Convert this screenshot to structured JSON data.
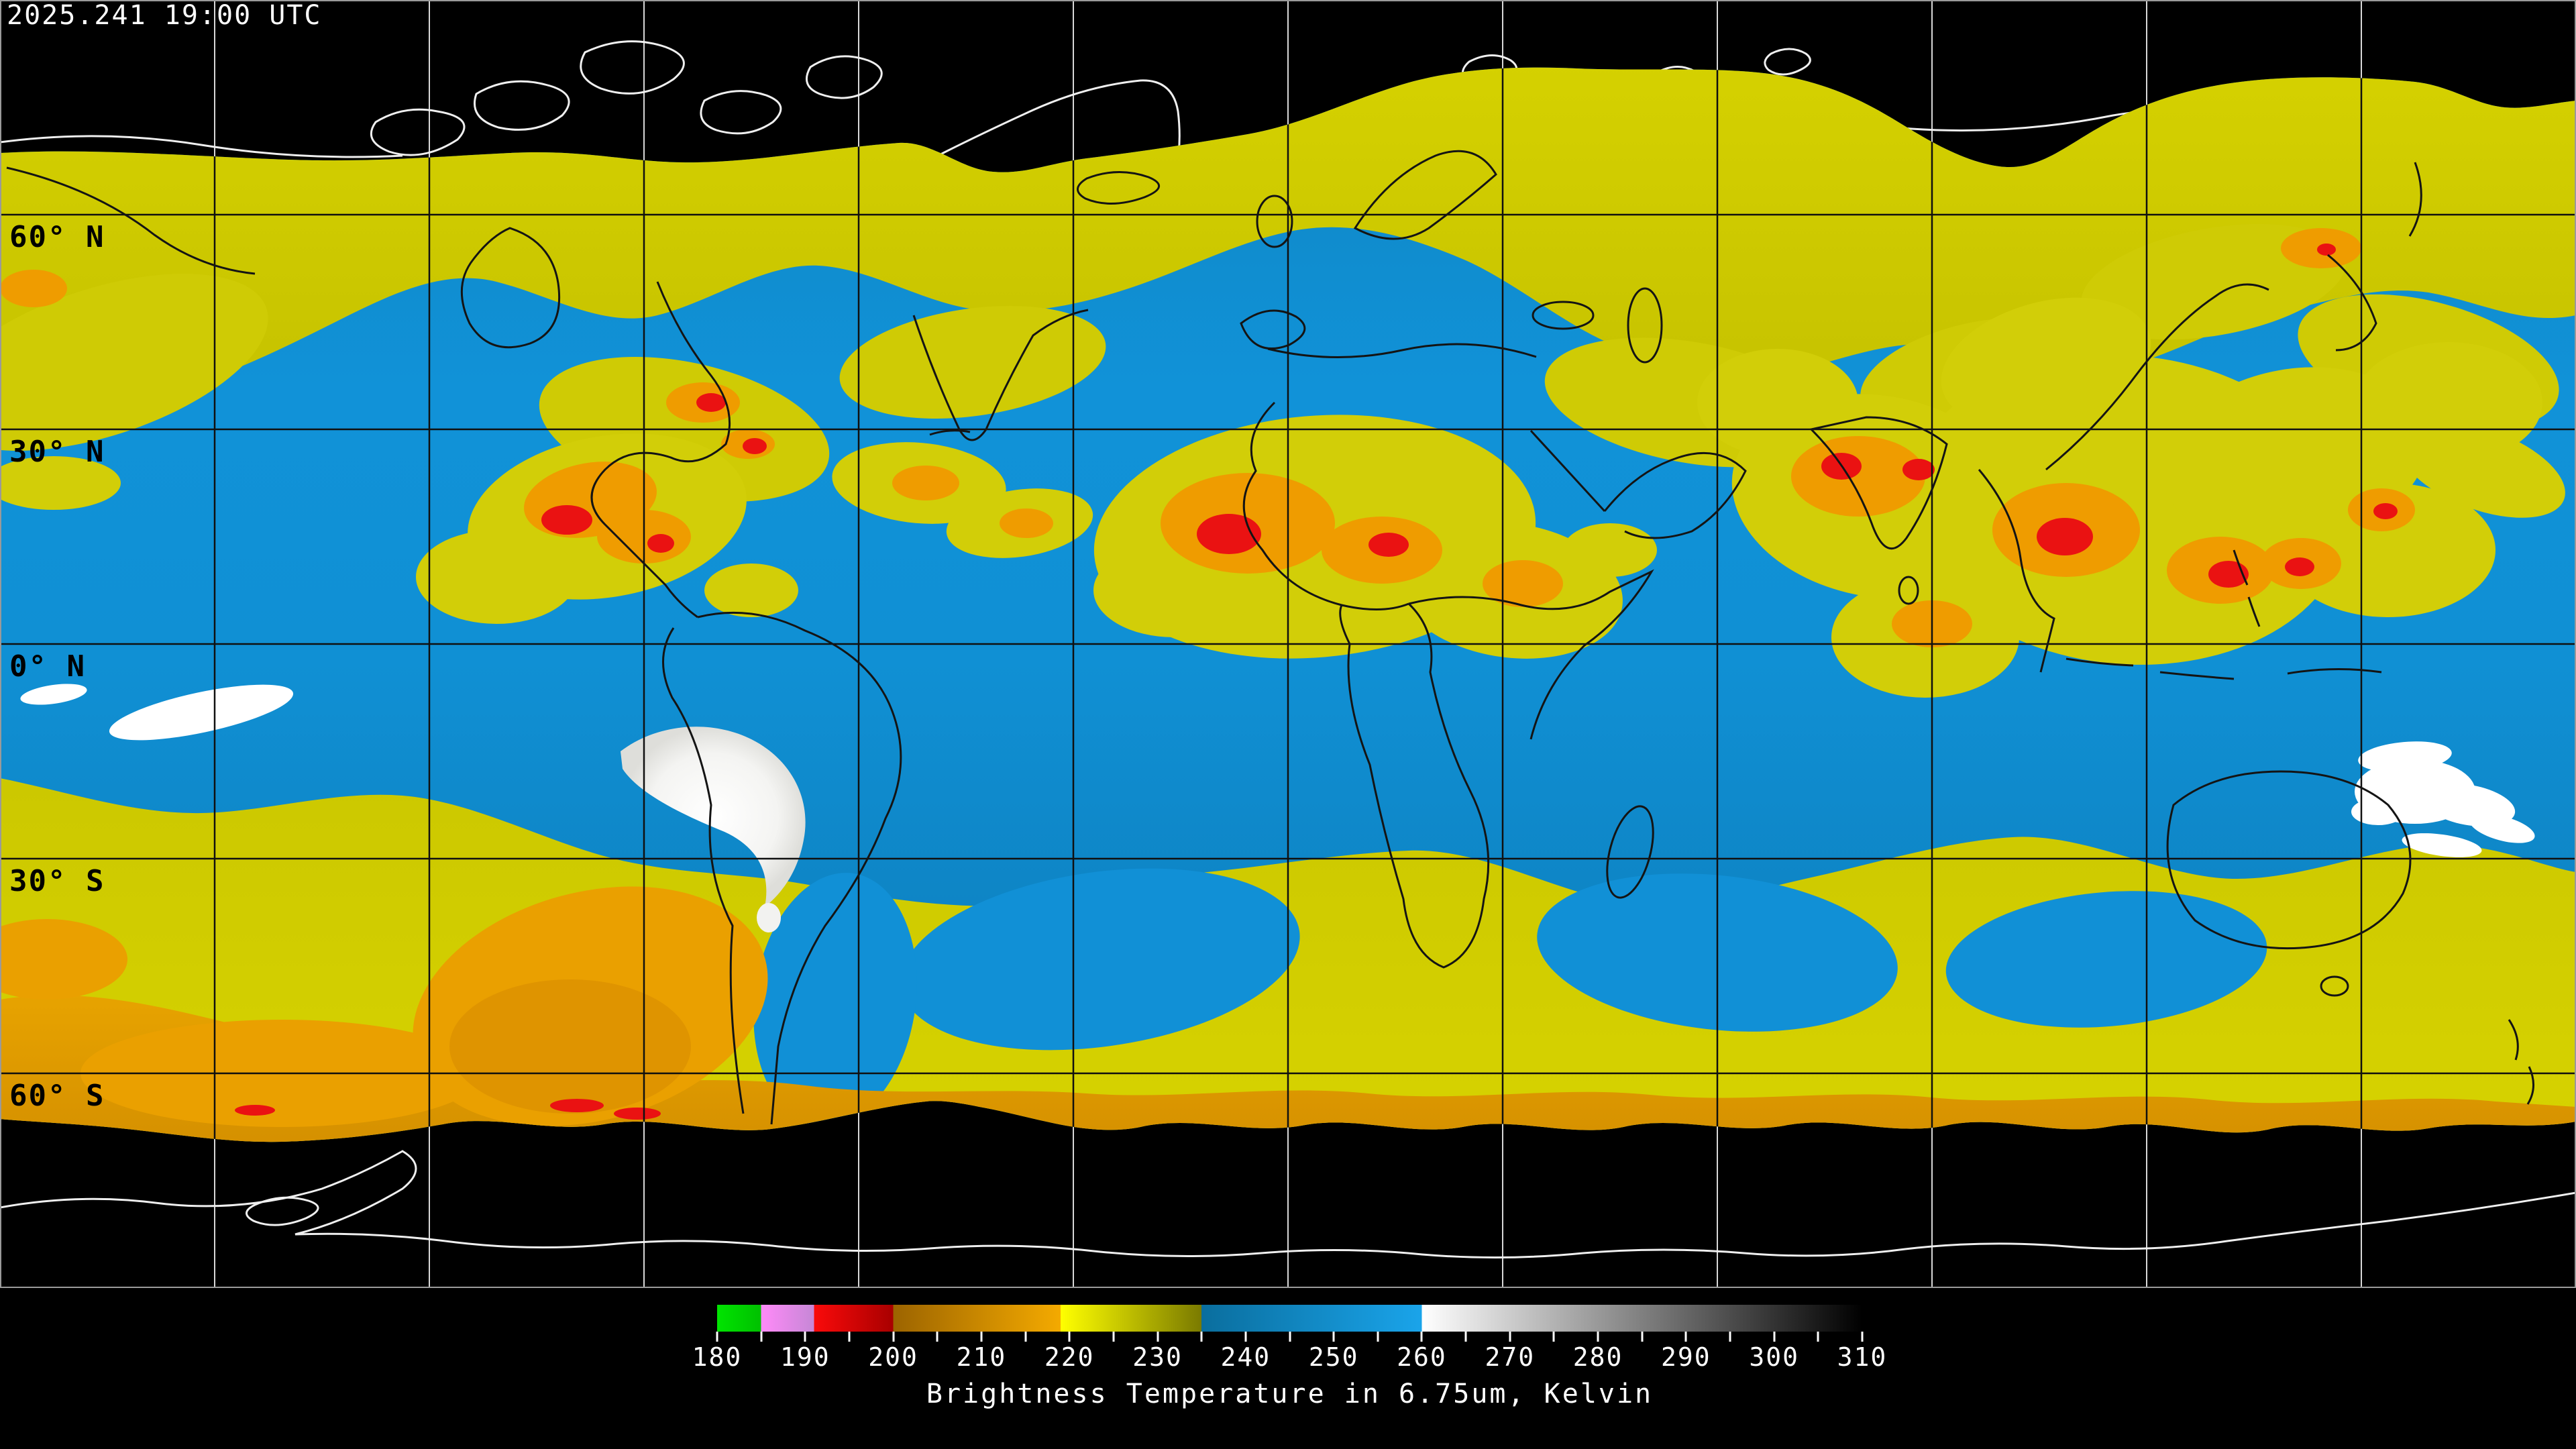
{
  "header": {
    "timestamp": "2025.241 19:00 UTC"
  },
  "map": {
    "description": "Global geostationary satellite water vapor composite on equirectangular projection, black where no data",
    "latitude_labels": [
      "60° N",
      "30° N",
      "0° N",
      "30° S",
      "60° S"
    ],
    "grid_spacing_deg": 30,
    "gridline_color_over_data": "#101010",
    "gridline_color_over_void": "#d8d8d8",
    "coastline_color_over_data": "#101010",
    "coastline_color_over_void": "#efefef",
    "void_color": "#000000"
  },
  "colorbar": {
    "caption": "Brightness Temperature in 6.75um, Kelvin",
    "unit": "Kelvin",
    "min": 180,
    "max": 310,
    "tick_step": 5,
    "tick_values": [
      180,
      185,
      190,
      195,
      200,
      205,
      210,
      215,
      220,
      225,
      230,
      235,
      240,
      245,
      250,
      255,
      260,
      265,
      270,
      275,
      280,
      285,
      290,
      295,
      300,
      305,
      310
    ],
    "label_values": [
      180,
      190,
      200,
      210,
      220,
      230,
      240,
      250,
      260,
      270,
      280,
      290,
      300,
      310
    ],
    "segments": [
      {
        "name": "green",
        "from": 180,
        "to": 185,
        "color_start": "#00e400",
        "color_end": "#00c000"
      },
      {
        "name": "pink",
        "from": 185,
        "to": 191,
        "color_start": "#ff8af8",
        "color_end": "#c687d6"
      },
      {
        "name": "red",
        "from": 191,
        "to": 200,
        "color_start": "#fa0a0a",
        "color_end": "#a80000"
      },
      {
        "name": "orange",
        "from": 200,
        "to": 219,
        "color_start": "#9c6400",
        "color_end": "#f4aa00"
      },
      {
        "name": "yellow-olive",
        "from": 219,
        "to": 235,
        "color_start": "#ffff00",
        "color_end": "#7a7a00"
      },
      {
        "name": "blue",
        "from": 235,
        "to": 260,
        "color_start": "#0a6e9e",
        "color_end": "#1aa4ea"
      },
      {
        "name": "grayscale",
        "from": 260,
        "to": 310,
        "color_start": "#ffffff",
        "color_end": "#000000"
      }
    ]
  }
}
